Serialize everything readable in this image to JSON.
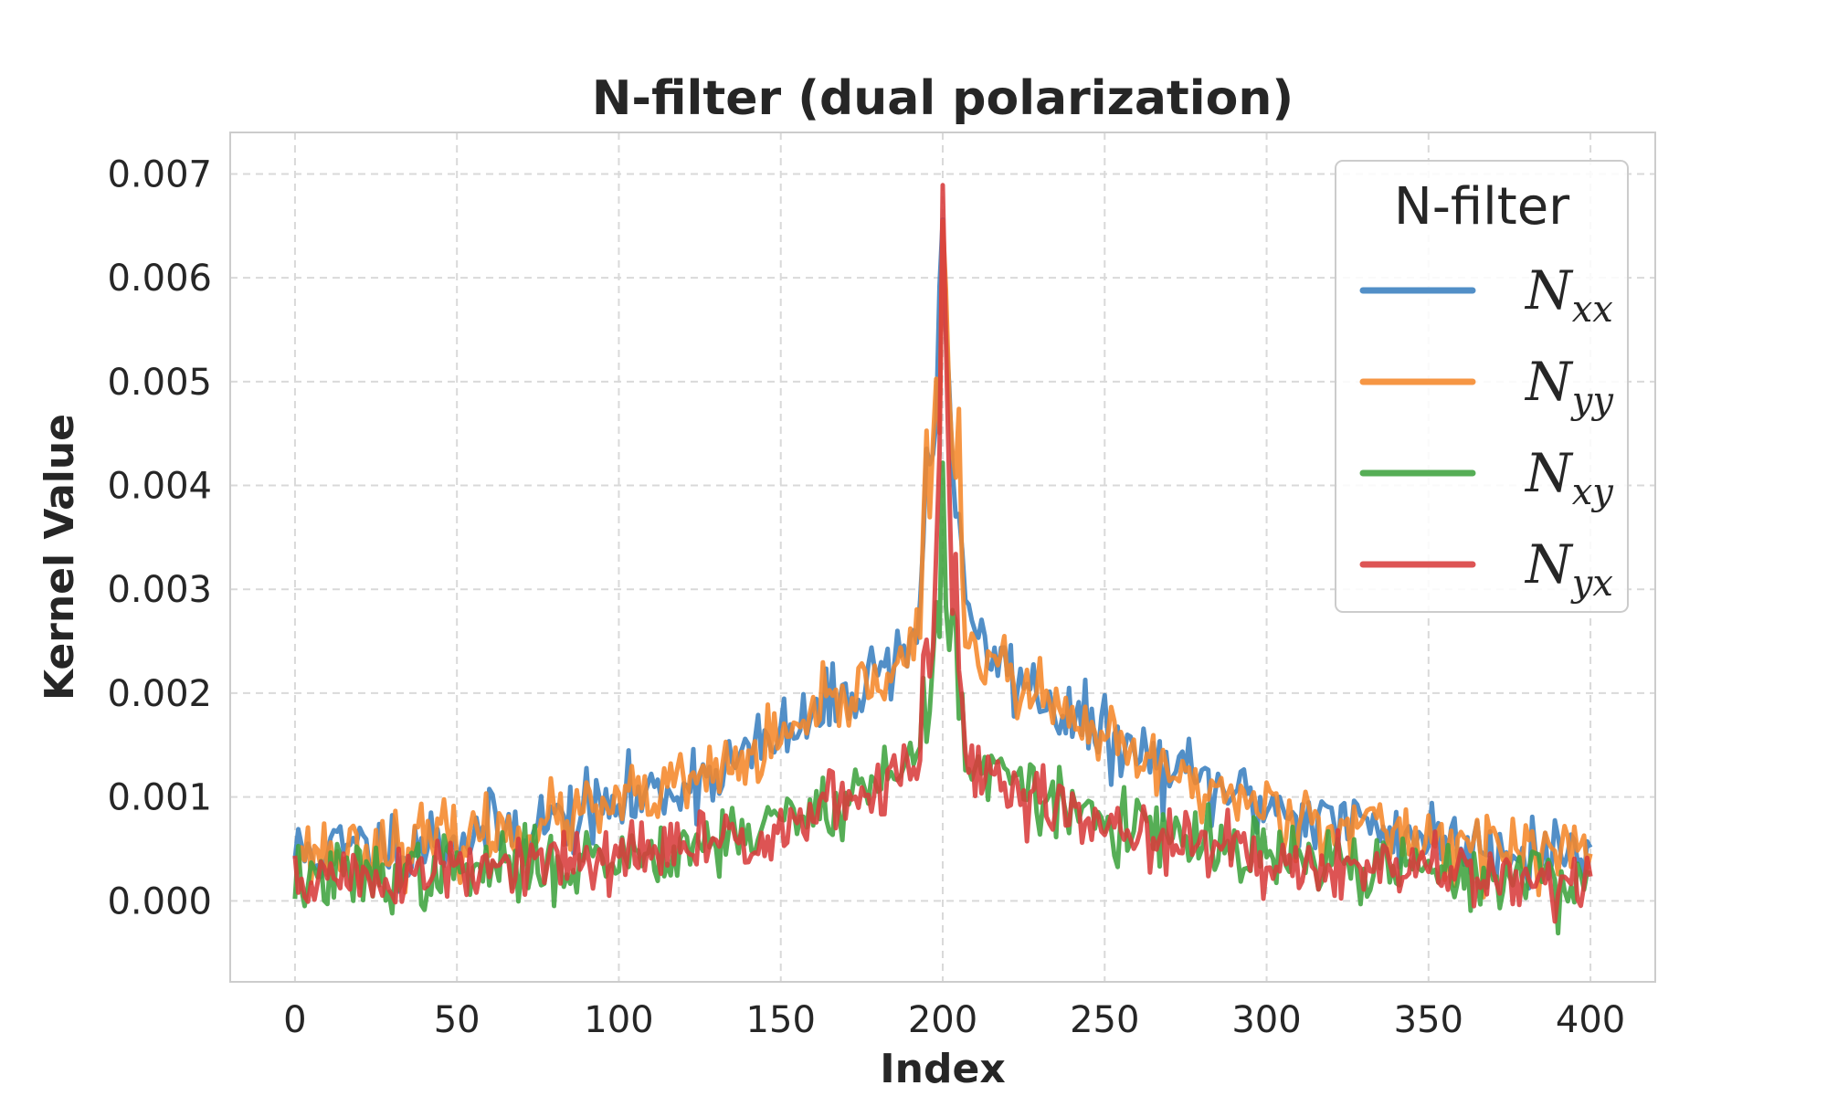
{
  "chart_data": {
    "type": "line",
    "title": "N-filter (dual polarization)",
    "xlabel": "Index",
    "ylabel": "Kernel Value",
    "xlim": [
      -20,
      420
    ],
    "ylim": [
      -0.00078,
      0.0074
    ],
    "xticks": [
      0,
      50,
      100,
      150,
      200,
      250,
      300,
      350,
      400
    ],
    "xtick_labels": [
      "0",
      "50",
      "100",
      "150",
      "200",
      "250",
      "300",
      "350",
      "400"
    ],
    "yticks": [
      0.0,
      0.001,
      0.002,
      0.003,
      0.004,
      0.005,
      0.006,
      0.007
    ],
    "ytick_labels": [
      "0.000",
      "0.001",
      "0.002",
      "0.003",
      "0.004",
      "0.005",
      "0.006",
      "0.007"
    ],
    "grid": true,
    "legend": {
      "title": "N-filter",
      "placement": "top-right"
    },
    "x_range": [
      0,
      400
    ],
    "series": [
      {
        "name": "N_xx",
        "label_main": "N",
        "label_sub": "xx",
        "color": "#3a7fbf",
        "peak": 0.00705,
        "center_value": 0.0034,
        "base_value": 0.0003,
        "tail_decay": 0.014,
        "noise": 0.00018,
        "seed": 11
      },
      {
        "name": "N_yy",
        "label_main": "N",
        "label_sub": "yy",
        "color": "#f5882a",
        "peak": 0.0067,
        "center_value": 0.0033,
        "base_value": 0.0003,
        "tail_decay": 0.014,
        "noise": 0.00017,
        "seed": 23
      },
      {
        "name": "N_xy",
        "label_main": "N",
        "label_sub": "xy",
        "color": "#3fa33f",
        "peak": 0.0042,
        "center_value": 0.0018,
        "base_value": 0.00015,
        "tail_decay": 0.016,
        "noise": 0.00017,
        "seed": 37
      },
      {
        "name": "N_yx",
        "label_main": "N",
        "label_sub": "yx",
        "color": "#d83c3c",
        "peak": 0.0067,
        "center_value": 0.0017,
        "base_value": 0.00015,
        "tail_decay": 0.016,
        "noise": 0.00017,
        "seed": 51
      }
    ]
  }
}
